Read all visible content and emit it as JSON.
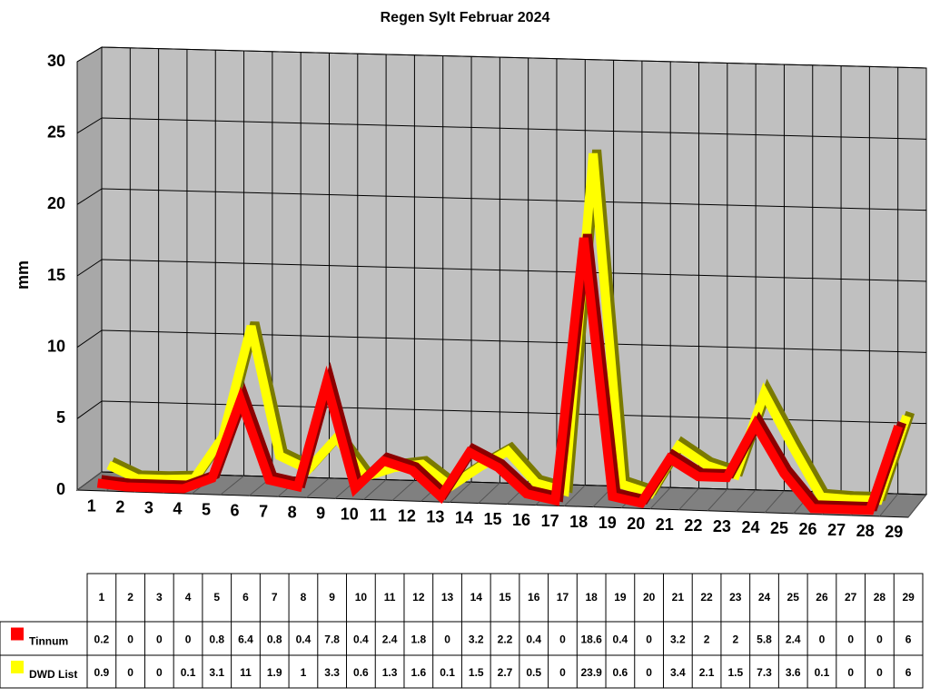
{
  "chart_data": {
    "type": "line3d",
    "title": "Regen Sylt Februar 2024",
    "ylabel": "mm",
    "categories": [
      "1",
      "2",
      "3",
      "4",
      "5",
      "6",
      "7",
      "8",
      "9",
      "10",
      "11",
      "12",
      "13",
      "14",
      "15",
      "16",
      "17",
      "18",
      "19",
      "20",
      "21",
      "22",
      "23",
      "24",
      "25",
      "26",
      "27",
      "28",
      "29"
    ],
    "series": [
      {
        "name": "Tinnum",
        "color": "#ff0000",
        "values": [
          0.2,
          0,
          0,
          0,
          0.8,
          6.4,
          0.8,
          0.4,
          7.8,
          0.4,
          2.4,
          1.8,
          0,
          3.2,
          2.2,
          0.4,
          0,
          18.6,
          0.4,
          0,
          3.2,
          2,
          2,
          5.8,
          2.4,
          0,
          0,
          0,
          6
        ]
      },
      {
        "name": "DWD List",
        "color": "#ffff00",
        "values": [
          0.9,
          0,
          0,
          0.1,
          3.1,
          11,
          1.9,
          1,
          3.3,
          0.6,
          1.3,
          1.6,
          0.1,
          1.5,
          2.7,
          0.5,
          0,
          23.9,
          0.6,
          0,
          3.4,
          2.1,
          1.5,
          7.3,
          3.6,
          0.1,
          0,
          0,
          6
        ]
      }
    ],
    "ylim": [
      0,
      30
    ],
    "yticks": [
      0,
      5,
      10,
      15,
      20,
      25,
      30
    ],
    "grid": true
  }
}
